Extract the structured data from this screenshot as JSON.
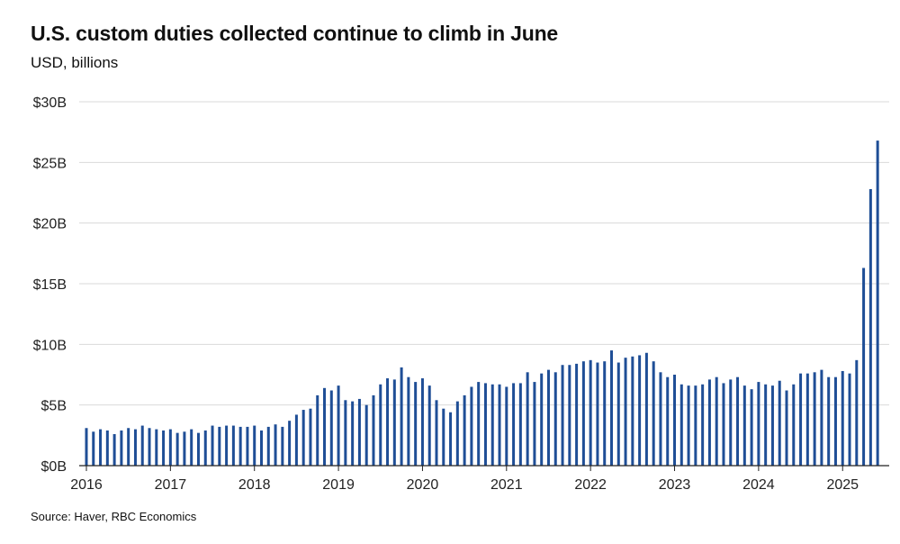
{
  "title": "U.S. custom duties collected continue to climb in June",
  "subtitle": "USD, billions",
  "source": "Source: Haver, RBC Economics",
  "colors": {
    "bar": "#1f4e96",
    "grid": "#d9d9d9",
    "axis": "#222222"
  },
  "chart_data": {
    "type": "bar",
    "title": "U.S. custom duties collected continue to climb in June",
    "ylabel": "USD, billions",
    "ylim": [
      0,
      30
    ],
    "yticks": [
      0,
      5,
      10,
      15,
      20,
      25,
      30
    ],
    "ytick_labels": [
      "$0B",
      "$5B",
      "$10B",
      "$15B",
      "$20B",
      "$25B",
      "$30B"
    ],
    "xtick_labels": [
      "2016",
      "2017",
      "2018",
      "2019",
      "2020",
      "2021",
      "2022",
      "2023",
      "2024",
      "2025"
    ],
    "grid": true,
    "start": "2016-01",
    "frequency": "monthly",
    "values": [
      3.1,
      2.8,
      3.0,
      2.9,
      2.6,
      2.9,
      3.1,
      3.0,
      3.3,
      3.1,
      3.0,
      2.9,
      3.0,
      2.7,
      2.8,
      3.0,
      2.7,
      2.9,
      3.3,
      3.2,
      3.3,
      3.3,
      3.2,
      3.2,
      3.3,
      2.9,
      3.2,
      3.4,
      3.2,
      3.7,
      4.2,
      4.6,
      4.7,
      5.8,
      6.4,
      6.2,
      6.6,
      5.4,
      5.3,
      5.5,
      5.0,
      5.8,
      6.7,
      7.2,
      7.1,
      8.1,
      7.3,
      6.9,
      7.2,
      6.6,
      5.4,
      4.7,
      4.4,
      5.3,
      5.8,
      6.5,
      6.9,
      6.8,
      6.7,
      6.7,
      6.5,
      6.8,
      6.8,
      7.7,
      6.9,
      7.6,
      7.9,
      7.7,
      8.3,
      8.3,
      8.4,
      8.6,
      8.7,
      8.5,
      8.6,
      9.5,
      8.5,
      8.9,
      9.0,
      9.1,
      9.3,
      8.6,
      7.7,
      7.3,
      7.5,
      6.7,
      6.6,
      6.6,
      6.7,
      7.1,
      7.3,
      6.8,
      7.1,
      7.3,
      6.6,
      6.3,
      6.9,
      6.7,
      6.6,
      7.0,
      6.2,
      6.7,
      7.6,
      7.6,
      7.7,
      7.9,
      7.3,
      7.3,
      7.8,
      7.6,
      8.7,
      16.3,
      22.8,
      26.8
    ]
  }
}
